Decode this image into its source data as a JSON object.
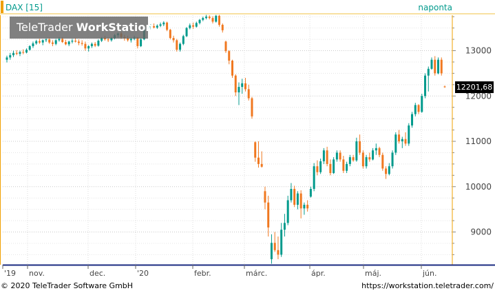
{
  "header": {
    "symbol": "DAX [15]",
    "interval": "naponta"
  },
  "watermark": {
    "brand_regular": "TeleTrader",
    "brand_bold": "WorkStation"
  },
  "footer": {
    "copyright": "© 2020 TeleTrader Software GmbH",
    "url": "https://workstation.teletrader.com/"
  },
  "colors": {
    "up": "#009a8c",
    "down": "#f07820",
    "accent": "#f0a000",
    "grid": "#cccccc"
  },
  "chart_data": {
    "type": "candlestick",
    "title": "DAX [15]",
    "interval": "naponta",
    "ylim": [
      8250,
      13800
    ],
    "y_ticks": [
      9000,
      10000,
      11000,
      12000,
      13000
    ],
    "y_tick_labels": [
      "9000",
      "10000",
      "11000",
      "12000",
      "13000"
    ],
    "x_tick_labels": [
      "'19",
      "nov.",
      "dec.",
      "'20",
      "febr.",
      "márc.",
      "ápr.",
      "máj.",
      "jún."
    ],
    "last_price": 12201.68,
    "last_price_label": "12201,68",
    "grid": true,
    "candles": [
      {
        "o": 12800,
        "h": 12890,
        "l": 12740,
        "c": 12850
      },
      {
        "o": 12850,
        "h": 12950,
        "l": 12800,
        "c": 12900
      },
      {
        "o": 12900,
        "h": 13000,
        "l": 12860,
        "c": 12950
      },
      {
        "o": 12950,
        "h": 13010,
        "l": 12900,
        "c": 12930
      },
      {
        "o": 12930,
        "h": 13000,
        "l": 12880,
        "c": 12970
      },
      {
        "o": 12970,
        "h": 13030,
        "l": 12920,
        "c": 12960
      },
      {
        "o": 12960,
        "h": 13050,
        "l": 12940,
        "c": 13020
      },
      {
        "o": 13020,
        "h": 13120,
        "l": 13000,
        "c": 13100
      },
      {
        "o": 13100,
        "h": 13200,
        "l": 13060,
        "c": 13160
      },
      {
        "o": 13160,
        "h": 13240,
        "l": 13130,
        "c": 13210
      },
      {
        "o": 13210,
        "h": 13260,
        "l": 13150,
        "c": 13180
      },
      {
        "o": 13180,
        "h": 13250,
        "l": 13120,
        "c": 13230
      },
      {
        "o": 13230,
        "h": 13280,
        "l": 13190,
        "c": 13250
      },
      {
        "o": 13250,
        "h": 13290,
        "l": 13150,
        "c": 13180
      },
      {
        "o": 13180,
        "h": 13230,
        "l": 13100,
        "c": 13150
      },
      {
        "o": 13150,
        "h": 13260,
        "l": 13120,
        "c": 13230
      },
      {
        "o": 13230,
        "h": 13300,
        "l": 13200,
        "c": 13260
      },
      {
        "o": 13260,
        "h": 13300,
        "l": 13170,
        "c": 13190
      },
      {
        "o": 13190,
        "h": 13240,
        "l": 13120,
        "c": 13140
      },
      {
        "o": 13140,
        "h": 13220,
        "l": 13100,
        "c": 13200
      },
      {
        "o": 13200,
        "h": 13260,
        "l": 13160,
        "c": 13220
      },
      {
        "o": 13220,
        "h": 13280,
        "l": 13180,
        "c": 13200
      },
      {
        "o": 13200,
        "h": 13250,
        "l": 13120,
        "c": 13170
      },
      {
        "o": 13170,
        "h": 13230,
        "l": 13110,
        "c": 13150
      },
      {
        "o": 13150,
        "h": 13200,
        "l": 13000,
        "c": 13050
      },
      {
        "o": 13050,
        "h": 13120,
        "l": 12980,
        "c": 13100
      },
      {
        "o": 13100,
        "h": 13180,
        "l": 13060,
        "c": 13150
      },
      {
        "o": 13150,
        "h": 13190,
        "l": 13080,
        "c": 13110
      },
      {
        "o": 13110,
        "h": 13250,
        "l": 13090,
        "c": 13220
      },
      {
        "o": 13220,
        "h": 13300,
        "l": 13190,
        "c": 13280
      },
      {
        "o": 13280,
        "h": 13330,
        "l": 13220,
        "c": 13250
      },
      {
        "o": 13250,
        "h": 13290,
        "l": 13190,
        "c": 13230
      },
      {
        "o": 13230,
        "h": 13300,
        "l": 13200,
        "c": 13280
      },
      {
        "o": 13280,
        "h": 13370,
        "l": 13250,
        "c": 13340
      },
      {
        "o": 13340,
        "h": 13400,
        "l": 13290,
        "c": 13380
      },
      {
        "o": 13380,
        "h": 13420,
        "l": 13260,
        "c": 13300
      },
      {
        "o": 13300,
        "h": 13350,
        "l": 13220,
        "c": 13280
      },
      {
        "o": 13280,
        "h": 13330,
        "l": 13200,
        "c": 13230
      },
      {
        "o": 13230,
        "h": 13290,
        "l": 13180,
        "c": 13260
      },
      {
        "o": 13260,
        "h": 13330,
        "l": 13230,
        "c": 13290
      },
      {
        "o": 13290,
        "h": 13300,
        "l": 13050,
        "c": 13100
      },
      {
        "o": 13100,
        "h": 13280,
        "l": 13080,
        "c": 13250
      },
      {
        "o": 13250,
        "h": 13500,
        "l": 13230,
        "c": 13480
      },
      {
        "o": 13480,
        "h": 13560,
        "l": 13440,
        "c": 13520
      },
      {
        "o": 13520,
        "h": 13580,
        "l": 13470,
        "c": 13540
      },
      {
        "o": 13540,
        "h": 13600,
        "l": 13490,
        "c": 13510
      },
      {
        "o": 13510,
        "h": 13580,
        "l": 13480,
        "c": 13550
      },
      {
        "o": 13550,
        "h": 13620,
        "l": 13520,
        "c": 13580
      },
      {
        "o": 13580,
        "h": 13650,
        "l": 13540,
        "c": 13620
      },
      {
        "o": 13620,
        "h": 13640,
        "l": 13430,
        "c": 13460
      },
      {
        "o": 13460,
        "h": 13480,
        "l": 13250,
        "c": 13280
      },
      {
        "o": 13280,
        "h": 13330,
        "l": 13180,
        "c": 13230
      },
      {
        "o": 13230,
        "h": 13260,
        "l": 12980,
        "c": 13020
      },
      {
        "o": 13020,
        "h": 13180,
        "l": 12980,
        "c": 13150
      },
      {
        "o": 13150,
        "h": 13350,
        "l": 13120,
        "c": 13320
      },
      {
        "o": 13320,
        "h": 13520,
        "l": 13300,
        "c": 13500
      },
      {
        "o": 13500,
        "h": 13600,
        "l": 13470,
        "c": 13560
      },
      {
        "o": 13560,
        "h": 13620,
        "l": 13480,
        "c": 13530
      },
      {
        "o": 13530,
        "h": 13640,
        "l": 13510,
        "c": 13610
      },
      {
        "o": 13610,
        "h": 13700,
        "l": 13580,
        "c": 13680
      },
      {
        "o": 13680,
        "h": 13750,
        "l": 13650,
        "c": 13720
      },
      {
        "o": 13720,
        "h": 13790,
        "l": 13690,
        "c": 13750
      },
      {
        "o": 13750,
        "h": 13780,
        "l": 13690,
        "c": 13720
      },
      {
        "o": 13720,
        "h": 13760,
        "l": 13600,
        "c": 13640
      },
      {
        "o": 13640,
        "h": 13790,
        "l": 13620,
        "c": 13770
      },
      {
        "o": 13770,
        "h": 13790,
        "l": 13530,
        "c": 13570
      },
      {
        "o": 13570,
        "h": 13600,
        "l": 13400,
        "c": 13450
      },
      {
        "o": 13200,
        "h": 13220,
        "l": 12950,
        "c": 12990
      },
      {
        "o": 12990,
        "h": 13010,
        "l": 12700,
        "c": 12780
      },
      {
        "o": 12780,
        "h": 12800,
        "l": 12400,
        "c": 12450
      },
      {
        "o": 12450,
        "h": 12480,
        "l": 12000,
        "c": 12080
      },
      {
        "o": 12080,
        "h": 12300,
        "l": 11800,
        "c": 12200
      },
      {
        "o": 12200,
        "h": 12380,
        "l": 12050,
        "c": 12280
      },
      {
        "o": 12280,
        "h": 12400,
        "l": 12100,
        "c": 12150
      },
      {
        "o": 12150,
        "h": 12250,
        "l": 11900,
        "c": 11950
      },
      {
        "o": 11950,
        "h": 11980,
        "l": 11500,
        "c": 11550
      },
      {
        "o": 10980,
        "h": 11000,
        "l": 10550,
        "c": 10640
      },
      {
        "o": 10640,
        "h": 11000,
        "l": 10420,
        "c": 10500
      },
      {
        "o": 10500,
        "h": 10780,
        "l": 10420,
        "c": 10440
      },
      {
        "o": 9900,
        "h": 10000,
        "l": 9500,
        "c": 9650
      },
      {
        "o": 9650,
        "h": 9800,
        "l": 8900,
        "c": 9100
      },
      {
        "o": 8400,
        "h": 8950,
        "l": 8300,
        "c": 8760
      },
      {
        "o": 8760,
        "h": 9000,
        "l": 8560,
        "c": 8600
      },
      {
        "o": 8600,
        "h": 8900,
        "l": 8400,
        "c": 8500
      },
      {
        "o": 8500,
        "h": 9200,
        "l": 8450,
        "c": 9050
      },
      {
        "o": 9050,
        "h": 9400,
        "l": 8900,
        "c": 9200
      },
      {
        "o": 9200,
        "h": 9800,
        "l": 9150,
        "c": 9700
      },
      {
        "o": 9700,
        "h": 10080,
        "l": 9650,
        "c": 9950
      },
      {
        "o": 9950,
        "h": 10020,
        "l": 9550,
        "c": 9600
      },
      {
        "o": 9600,
        "h": 9900,
        "l": 9500,
        "c": 9850
      },
      {
        "o": 9850,
        "h": 9920,
        "l": 9300,
        "c": 9520
      },
      {
        "o": 9520,
        "h": 9650,
        "l": 9380,
        "c": 9600
      },
      {
        "o": 9600,
        "h": 9700,
        "l": 9450,
        "c": 9520
      },
      {
        "o": 9780,
        "h": 10000,
        "l": 9760,
        "c": 9950
      },
      {
        "o": 9950,
        "h": 10520,
        "l": 9900,
        "c": 10450
      },
      {
        "o": 10450,
        "h": 10580,
        "l": 10250,
        "c": 10320
      },
      {
        "o": 10320,
        "h": 10620,
        "l": 10280,
        "c": 10560
      },
      {
        "o": 10560,
        "h": 10850,
        "l": 10500,
        "c": 10800
      },
      {
        "o": 10800,
        "h": 10880,
        "l": 10450,
        "c": 10500
      },
      {
        "o": 10500,
        "h": 10600,
        "l": 10250,
        "c": 10300
      },
      {
        "o": 10300,
        "h": 10650,
        "l": 10280,
        "c": 10600
      },
      {
        "o": 10600,
        "h": 10800,
        "l": 10550,
        "c": 10750
      },
      {
        "o": 10750,
        "h": 10800,
        "l": 10550,
        "c": 10600
      },
      {
        "o": 10600,
        "h": 10680,
        "l": 10300,
        "c": 10350
      },
      {
        "o": 10350,
        "h": 10550,
        "l": 10300,
        "c": 10500
      },
      {
        "o": 10500,
        "h": 10700,
        "l": 10450,
        "c": 10650
      },
      {
        "o": 10650,
        "h": 10700,
        "l": 10550,
        "c": 10580
      },
      {
        "o": 10580,
        "h": 11080,
        "l": 10550,
        "c": 11000
      },
      {
        "o": 11000,
        "h": 11150,
        "l": 10700,
        "c": 10750
      },
      {
        "o": 10750,
        "h": 10800,
        "l": 10400,
        "c": 10450
      },
      {
        "o": 10450,
        "h": 10700,
        "l": 10400,
        "c": 10650
      },
      {
        "o": 10650,
        "h": 10750,
        "l": 10550,
        "c": 10600
      },
      {
        "o": 10600,
        "h": 10850,
        "l": 10580,
        "c": 10800
      },
      {
        "o": 10800,
        "h": 10950,
        "l": 10700,
        "c": 10850
      },
      {
        "o": 10850,
        "h": 10880,
        "l": 10650,
        "c": 10700
      },
      {
        "o": 10700,
        "h": 10750,
        "l": 10350,
        "c": 10400
      },
      {
        "o": 10400,
        "h": 10450,
        "l": 10170,
        "c": 10280
      },
      {
        "o": 10280,
        "h": 10520,
        "l": 10250,
        "c": 10450
      },
      {
        "o": 10450,
        "h": 10800,
        "l": 10400,
        "c": 10750
      },
      {
        "o": 10750,
        "h": 11200,
        "l": 10700,
        "c": 11150
      },
      {
        "o": 11150,
        "h": 11250,
        "l": 10950,
        "c": 11000
      },
      {
        "o": 11000,
        "h": 11100,
        "l": 10850,
        "c": 11050
      },
      {
        "o": 11050,
        "h": 11200,
        "l": 10900,
        "c": 10950
      },
      {
        "o": 10950,
        "h": 11400,
        "l": 10900,
        "c": 11350
      },
      {
        "o": 11350,
        "h": 11650,
        "l": 11300,
        "c": 11600
      },
      {
        "o": 11600,
        "h": 11850,
        "l": 11550,
        "c": 11800
      },
      {
        "o": 11800,
        "h": 11820,
        "l": 11600,
        "c": 11650
      },
      {
        "o": 11650,
        "h": 12050,
        "l": 11630,
        "c": 12000
      },
      {
        "o": 12000,
        "h": 12500,
        "l": 11950,
        "c": 12450
      },
      {
        "o": 12450,
        "h": 12650,
        "l": 12100,
        "c": 12600
      },
      {
        "o": 12600,
        "h": 12850,
        "l": 12580,
        "c": 12800
      },
      {
        "o": 12800,
        "h": 12880,
        "l": 12450,
        "c": 12500
      },
      {
        "o": 12500,
        "h": 12850,
        "l": 12480,
        "c": 12800
      },
      {
        "o": 12800,
        "h": 12850,
        "l": 12450,
        "c": 12500
      },
      {
        "o": 12210,
        "h": 12230,
        "l": 12180,
        "c": 12201.68
      }
    ]
  }
}
